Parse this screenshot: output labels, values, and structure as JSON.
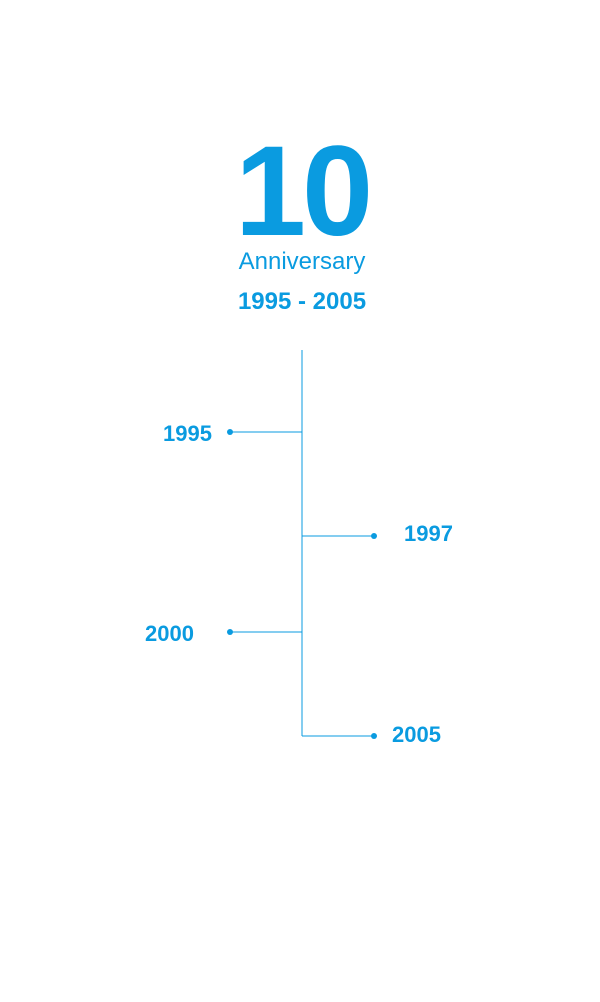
{
  "header": {
    "number": "10",
    "subtitle": "Anniversary",
    "range": "1995 - 2005"
  },
  "timeline": {
    "events": [
      "1995",
      "1997",
      "2000",
      "2005"
    ]
  }
}
